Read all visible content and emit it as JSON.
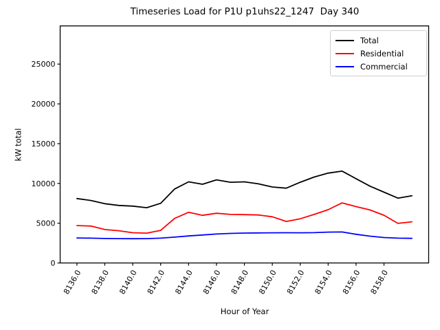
{
  "chart_data": {
    "type": "line",
    "title": "Timeseries Load for P1U p1uhs22_1247  Day 340",
    "xlabel": "Hour of Year",
    "ylabel": "kW total",
    "grid": false,
    "legend_position": "upper right",
    "xlim": [
      8134.8,
      8161.2
    ],
    "ylim": [
      0,
      29800
    ],
    "x": [
      8136,
      8137,
      8138,
      8139,
      8140,
      8141,
      8142,
      8143,
      8144,
      8145,
      8146,
      8147,
      8148,
      8149,
      8150,
      8151,
      8152,
      8153,
      8154,
      8155,
      8156,
      8157,
      8158,
      8159,
      8160
    ],
    "series": [
      {
        "name": "Total",
        "color": "#000000",
        "values": [
          8100,
          7860,
          7450,
          7230,
          7150,
          6950,
          7500,
          9300,
          10200,
          9900,
          10450,
          10150,
          10200,
          9950,
          9550,
          9400,
          10150,
          10800,
          11300,
          11550,
          10600,
          9650,
          8900,
          8150,
          8450
        ]
      },
      {
        "name": "Residential",
        "color": "#ff0000",
        "values": [
          4700,
          4640,
          4200,
          4050,
          3800,
          3750,
          4100,
          5600,
          6370,
          5990,
          6250,
          6100,
          6080,
          6030,
          5810,
          5220,
          5560,
          6100,
          6700,
          7550,
          7090,
          6660,
          6000,
          4980,
          5180
        ]
      },
      {
        "name": "Commercial",
        "color": "#0000ff",
        "values": [
          3150,
          3120,
          3080,
          3060,
          3050,
          3060,
          3120,
          3250,
          3400,
          3520,
          3640,
          3720,
          3760,
          3780,
          3790,
          3800,
          3790,
          3810,
          3880,
          3900,
          3600,
          3370,
          3200,
          3120,
          3090
        ]
      }
    ],
    "xticks": {
      "values": [
        8136,
        8138,
        8140,
        8142,
        8144,
        8146,
        8148,
        8150,
        8152,
        8154,
        8156,
        8158
      ],
      "labels": [
        "8136.0",
        "8138.0",
        "8140.0",
        "8142.0",
        "8144.0",
        "8146.0",
        "8148.0",
        "8150.0",
        "8152.0",
        "8154.0",
        "8156.0",
        "8158.0"
      ],
      "rotation_deg": 60
    },
    "yticks": {
      "values": [
        0,
        5000,
        10000,
        15000,
        20000,
        25000
      ],
      "labels": [
        "0",
        "5000",
        "10000",
        "15000",
        "20000",
        "25000"
      ]
    }
  }
}
